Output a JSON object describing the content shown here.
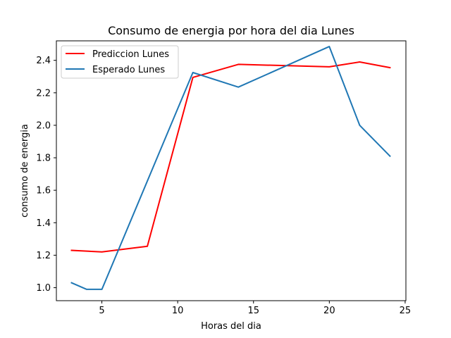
{
  "chart_data": {
    "type": "line",
    "title": "Consumo de energia por hora del dia Lunes",
    "xlabel": "Horas del dia",
    "ylabel": "consumo de energia",
    "xlim": [
      2.0,
      25.05
    ],
    "ylim": [
      0.92,
      2.52
    ],
    "xticks": [
      5,
      10,
      15,
      20,
      25
    ],
    "yticks": [
      1.0,
      1.2,
      1.4,
      1.6,
      1.8,
      2.0,
      2.2,
      2.4
    ],
    "ytick_labels": [
      "1.0",
      "1.2",
      "1.4",
      "1.6",
      "1.8",
      "2.0",
      "2.2",
      "2.4"
    ],
    "grid": false,
    "legend_position": "top-left",
    "series": [
      {
        "name": "Prediccion Lunes",
        "color": "#ff0000",
        "x": [
          3,
          5,
          8,
          11,
          14,
          20,
          22,
          24
        ],
        "y": [
          1.23,
          1.22,
          1.255,
          2.295,
          2.375,
          2.36,
          2.39,
          2.355
        ]
      },
      {
        "name": "Esperado Lunes",
        "color": "#1f77b4",
        "x": [
          3,
          4,
          5,
          11,
          14,
          20,
          22,
          24
        ],
        "y": [
          1.03,
          0.99,
          0.99,
          2.325,
          2.235,
          2.485,
          2.0,
          1.81
        ]
      }
    ]
  }
}
